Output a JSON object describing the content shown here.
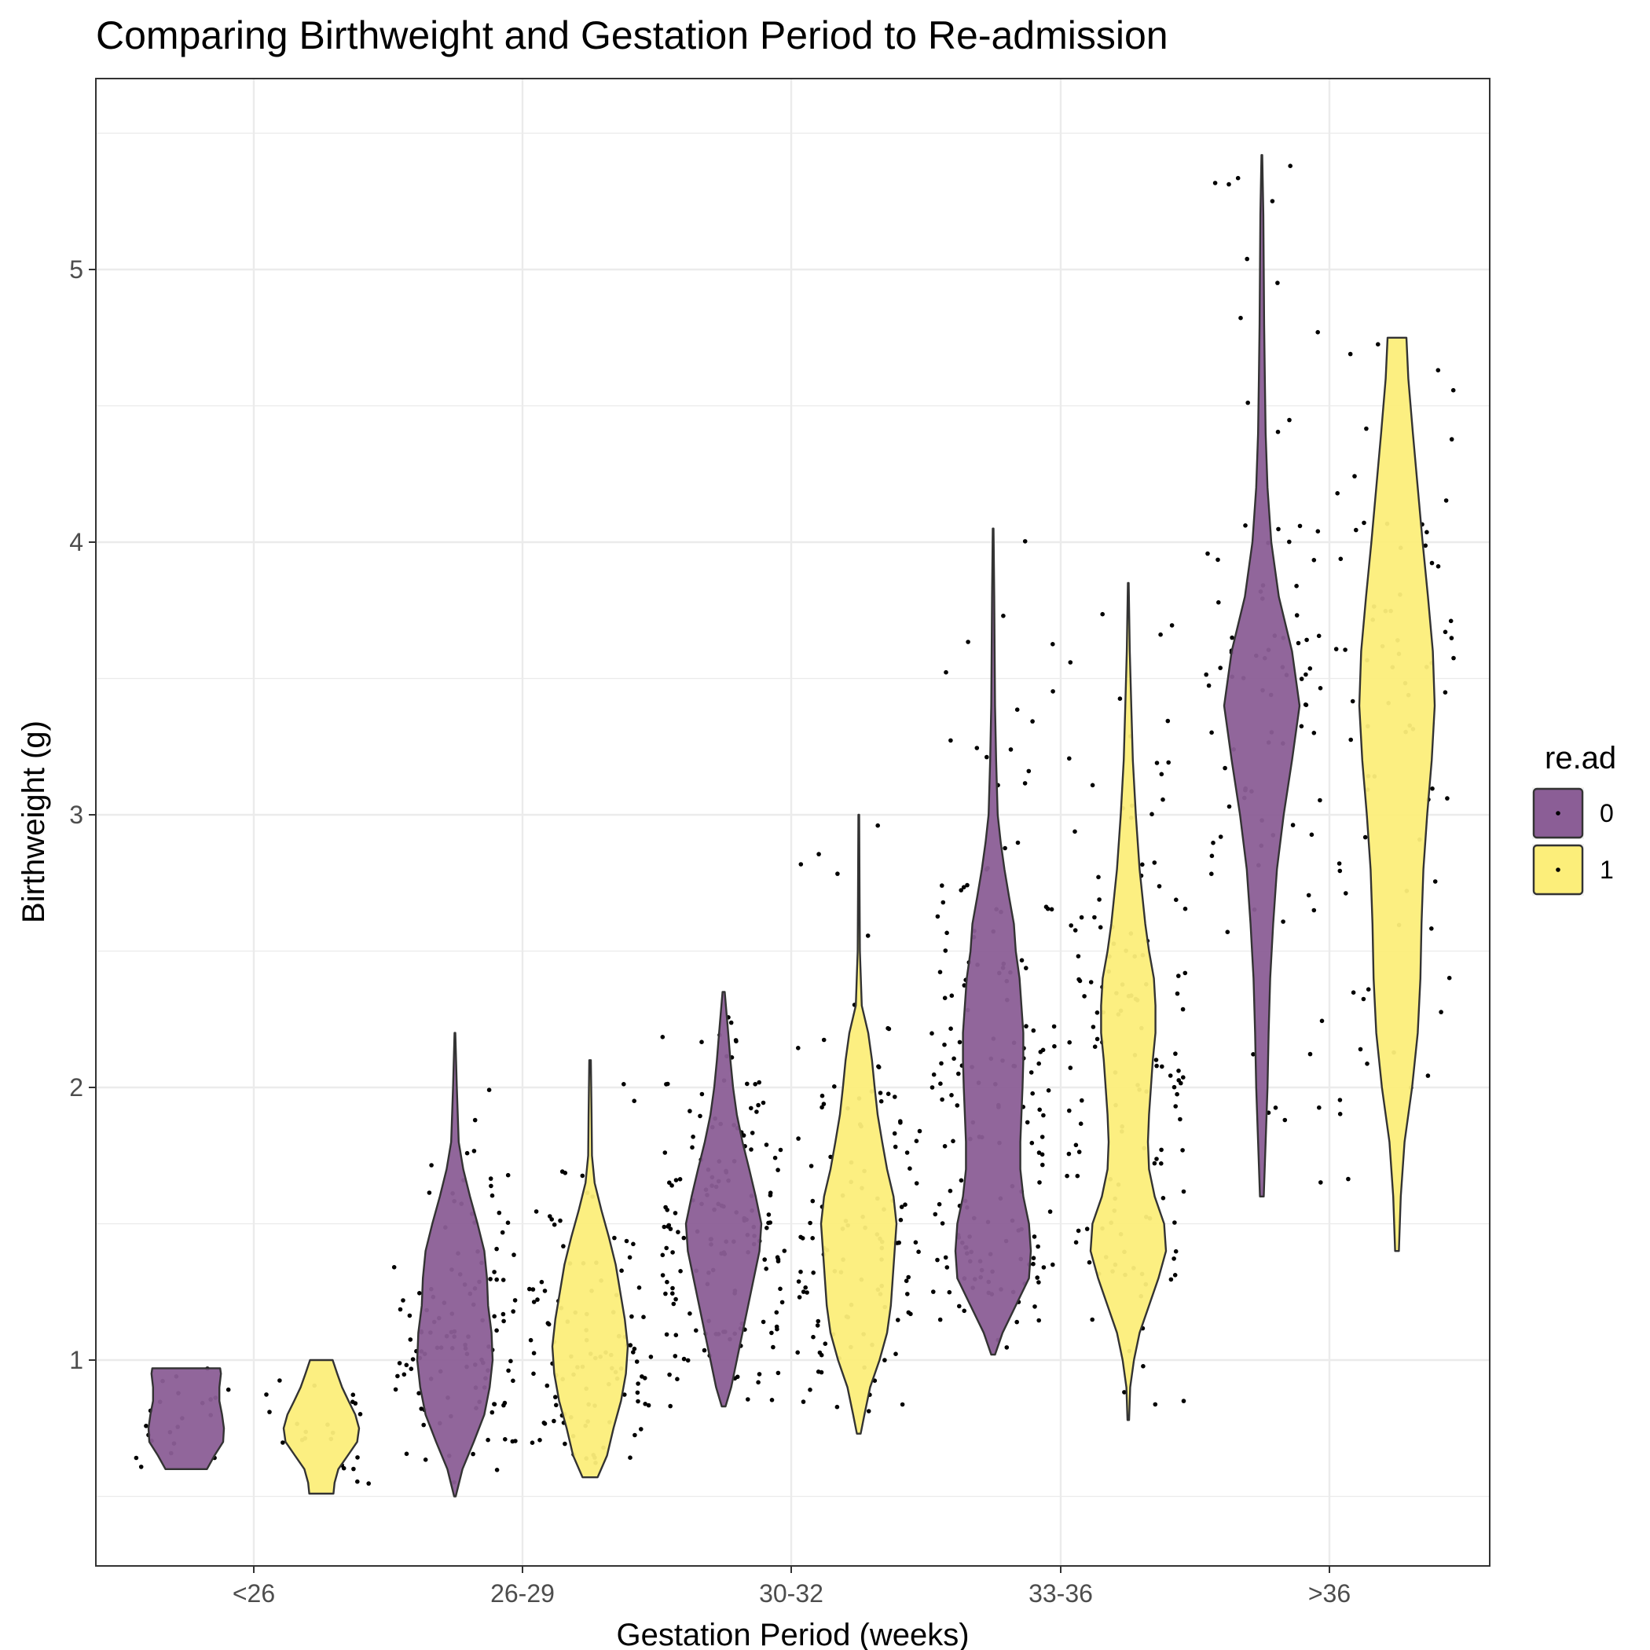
{
  "chart_data": {
    "type": "violin",
    "title": "Comparing Birthweight and Gestation Period to Re-admission",
    "xlabel": "Gestation Period (weeks)",
    "ylabel": "Birthweight (g)",
    "categories": [
      "<26",
      "26-29",
      "30-32",
      "33-36",
      ">36"
    ],
    "y_ticks": [
      "1",
      "2",
      "3",
      "4",
      "5"
    ],
    "ylim": [
      0.35,
      5.8
    ],
    "grid": true,
    "jitter_points": true,
    "legend": {
      "title": "re.ad",
      "position": "right",
      "labels": [
        "0",
        "1"
      ]
    },
    "colors": {
      "0": "#8b5e96",
      "1": "#fcee7a"
    },
    "series": [
      {
        "name": "0",
        "groups": [
          {
            "category": "<26",
            "min": 0.6,
            "max": 0.97,
            "profile": [
              [
                0.6,
                0.55
              ],
              [
                0.65,
                0.75
              ],
              [
                0.7,
                0.98
              ],
              [
                0.75,
                1.0
              ],
              [
                0.8,
                0.95
              ],
              [
                0.85,
                0.88
              ],
              [
                0.9,
                0.88
              ],
              [
                0.95,
                0.92
              ],
              [
                0.97,
                0.9
              ]
            ]
          },
          {
            "category": "26-29",
            "min": 0.5,
            "max": 2.2,
            "profile": [
              [
                0.5,
                0.02
              ],
              [
                0.6,
                0.2
              ],
              [
                0.7,
                0.5
              ],
              [
                0.8,
                0.78
              ],
              [
                0.9,
                0.92
              ],
              [
                1.0,
                1.0
              ],
              [
                1.1,
                0.97
              ],
              [
                1.2,
                0.88
              ],
              [
                1.3,
                0.85
              ],
              [
                1.4,
                0.78
              ],
              [
                1.5,
                0.6
              ],
              [
                1.6,
                0.4
              ],
              [
                1.7,
                0.22
              ],
              [
                1.8,
                0.1
              ],
              [
                2.0,
                0.05
              ],
              [
                2.2,
                0.01
              ]
            ]
          },
          {
            "category": "30-32",
            "min": 0.83,
            "max": 2.35,
            "profile": [
              [
                0.83,
                0.05
              ],
              [
                0.9,
                0.2
              ],
              [
                1.0,
                0.35
              ],
              [
                1.1,
                0.5
              ],
              [
                1.2,
                0.65
              ],
              [
                1.3,
                0.8
              ],
              [
                1.4,
                0.95
              ],
              [
                1.5,
                1.0
              ],
              [
                1.6,
                0.85
              ],
              [
                1.7,
                0.68
              ],
              [
                1.8,
                0.5
              ],
              [
                1.9,
                0.35
              ],
              [
                2.0,
                0.25
              ],
              [
                2.1,
                0.18
              ],
              [
                2.2,
                0.12
              ],
              [
                2.35,
                0.03
              ]
            ]
          },
          {
            "category": "33-36",
            "min": 1.02,
            "max": 4.05,
            "profile": [
              [
                1.02,
                0.05
              ],
              [
                1.1,
                0.25
              ],
              [
                1.2,
                0.6
              ],
              [
                1.3,
                0.95
              ],
              [
                1.4,
                1.0
              ],
              [
                1.5,
                0.95
              ],
              [
                1.6,
                0.8
              ],
              [
                1.7,
                0.72
              ],
              [
                1.8,
                0.72
              ],
              [
                1.9,
                0.75
              ],
              [
                2.0,
                0.78
              ],
              [
                2.1,
                0.8
              ],
              [
                2.2,
                0.8
              ],
              [
                2.3,
                0.75
              ],
              [
                2.4,
                0.7
              ],
              [
                2.5,
                0.6
              ],
              [
                2.6,
                0.55
              ],
              [
                2.7,
                0.42
              ],
              [
                2.8,
                0.3
              ],
              [
                2.9,
                0.2
              ],
              [
                3.0,
                0.12
              ],
              [
                3.2,
                0.08
              ],
              [
                3.4,
                0.05
              ],
              [
                3.6,
                0.04
              ],
              [
                3.8,
                0.03
              ],
              [
                4.05,
                0.01
              ]
            ]
          },
          {
            "category": ">36",
            "min": 1.6,
            "max": 5.42,
            "profile": [
              [
                1.6,
                0.05
              ],
              [
                1.8,
                0.1
              ],
              [
                2.0,
                0.15
              ],
              [
                2.2,
                0.18
              ],
              [
                2.4,
                0.22
              ],
              [
                2.6,
                0.3
              ],
              [
                2.8,
                0.4
              ],
              [
                3.0,
                0.58
              ],
              [
                3.2,
                0.8
              ],
              [
                3.4,
                1.0
              ],
              [
                3.6,
                0.8
              ],
              [
                3.8,
                0.45
              ],
              [
                4.0,
                0.25
              ],
              [
                4.2,
                0.15
              ],
              [
                4.4,
                0.1
              ],
              [
                4.6,
                0.08
              ],
              [
                4.8,
                0.06
              ],
              [
                5.0,
                0.05
              ],
              [
                5.2,
                0.04
              ],
              [
                5.42,
                0.01
              ]
            ]
          }
        ]
      },
      {
        "name": "1",
        "groups": [
          {
            "category": "<26",
            "min": 0.51,
            "max": 1.0,
            "profile": [
              [
                0.51,
                0.32
              ],
              [
                0.55,
                0.35
              ],
              [
                0.6,
                0.45
              ],
              [
                0.65,
                0.7
              ],
              [
                0.7,
                0.95
              ],
              [
                0.75,
                1.0
              ],
              [
                0.8,
                0.9
              ],
              [
                0.85,
                0.72
              ],
              [
                0.9,
                0.55
              ],
              [
                0.95,
                0.42
              ],
              [
                1.0,
                0.3
              ]
            ]
          },
          {
            "category": "26-29",
            "min": 0.57,
            "max": 2.1,
            "profile": [
              [
                0.57,
                0.2
              ],
              [
                0.65,
                0.45
              ],
              [
                0.75,
                0.62
              ],
              [
                0.85,
                0.82
              ],
              [
                0.95,
                0.95
              ],
              [
                1.05,
                1.0
              ],
              [
                1.15,
                0.92
              ],
              [
                1.25,
                0.8
              ],
              [
                1.35,
                0.68
              ],
              [
                1.45,
                0.5
              ],
              [
                1.55,
                0.3
              ],
              [
                1.65,
                0.12
              ],
              [
                1.75,
                0.05
              ],
              [
                1.9,
                0.04
              ],
              [
                2.1,
                0.02
              ]
            ]
          },
          {
            "category": "30-32",
            "min": 0.73,
            "max": 3.0,
            "profile": [
              [
                0.73,
                0.05
              ],
              [
                0.8,
                0.15
              ],
              [
                0.9,
                0.3
              ],
              [
                1.0,
                0.55
              ],
              [
                1.1,
                0.75
              ],
              [
                1.2,
                0.85
              ],
              [
                1.3,
                0.9
              ],
              [
                1.4,
                0.95
              ],
              [
                1.5,
                1.0
              ],
              [
                1.6,
                0.92
              ],
              [
                1.7,
                0.75
              ],
              [
                1.8,
                0.62
              ],
              [
                1.9,
                0.5
              ],
              [
                2.0,
                0.42
              ],
              [
                2.1,
                0.35
              ],
              [
                2.2,
                0.25
              ],
              [
                2.3,
                0.08
              ],
              [
                2.5,
                0.03
              ],
              [
                2.7,
                0.02
              ],
              [
                3.0,
                0.01
              ]
            ]
          },
          {
            "category": "33-36",
            "min": 0.78,
            "max": 3.85,
            "profile": [
              [
                0.78,
                0.02
              ],
              [
                0.9,
                0.05
              ],
              [
                1.0,
                0.15
              ],
              [
                1.1,
                0.3
              ],
              [
                1.2,
                0.55
              ],
              [
                1.3,
                0.8
              ],
              [
                1.4,
                1.0
              ],
              [
                1.5,
                0.95
              ],
              [
                1.6,
                0.7
              ],
              [
                1.7,
                0.55
              ],
              [
                1.8,
                0.52
              ],
              [
                1.9,
                0.55
              ],
              [
                2.0,
                0.6
              ],
              [
                2.1,
                0.65
              ],
              [
                2.2,
                0.72
              ],
              [
                2.3,
                0.72
              ],
              [
                2.4,
                0.68
              ],
              [
                2.5,
                0.55
              ],
              [
                2.6,
                0.45
              ],
              [
                2.8,
                0.3
              ],
              [
                3.0,
                0.2
              ],
              [
                3.2,
                0.12
              ],
              [
                3.4,
                0.08
              ],
              [
                3.6,
                0.04
              ],
              [
                3.85,
                0.01
              ]
            ]
          },
          {
            "category": ">36",
            "min": 1.4,
            "max": 4.75,
            "profile": [
              [
                1.4,
                0.05
              ],
              [
                1.6,
                0.1
              ],
              [
                1.8,
                0.2
              ],
              [
                2.0,
                0.4
              ],
              [
                2.2,
                0.55
              ],
              [
                2.4,
                0.62
              ],
              [
                2.6,
                0.65
              ],
              [
                2.8,
                0.7
              ],
              [
                3.0,
                0.8
              ],
              [
                3.2,
                0.92
              ],
              [
                3.4,
                1.0
              ],
              [
                3.6,
                0.95
              ],
              [
                3.8,
                0.82
              ],
              [
                4.0,
                0.68
              ],
              [
                4.2,
                0.55
              ],
              [
                4.4,
                0.42
              ],
              [
                4.6,
                0.3
              ],
              [
                4.75,
                0.25
              ]
            ]
          }
        ]
      }
    ]
  }
}
